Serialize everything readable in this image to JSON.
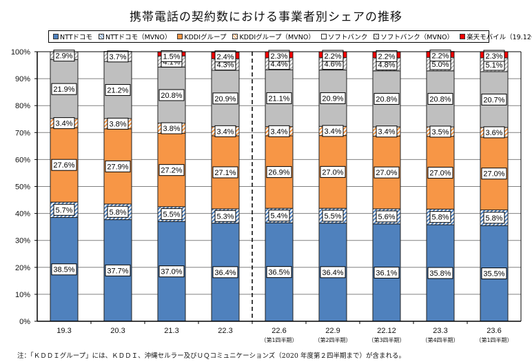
{
  "chart_data": {
    "type": "bar",
    "stacked": true,
    "title": "携帯電話の契約数における事業者別シェアの推移",
    "xlabel": "",
    "ylabel": "",
    "ylim": [
      0,
      100
    ],
    "yticks": [
      "0%",
      "10%",
      "20%",
      "30%",
      "40%",
      "50%",
      "60%",
      "70%",
      "80%",
      "90%",
      "100%"
    ],
    "grid": true,
    "legend_position": "top",
    "categories": [
      "19.3",
      "20.3",
      "21.3",
      "22.3",
      "22.6",
      "22.9",
      "22.12",
      "23.3",
      "23.6"
    ],
    "category_sublabels": [
      "",
      "",
      "",
      "",
      "（第1四半期）",
      "（第2四半期）",
      "（第3四半期）",
      "（第4四半期）",
      "（第1四半期）"
    ],
    "divider_after_category": "22.3",
    "series": [
      {
        "name": "NTTドコモ",
        "color": "#4f81bd",
        "pattern": "solid",
        "values": [
          38.5,
          37.7,
          37.0,
          36.4,
          36.5,
          36.4,
          36.1,
          35.8,
          35.5
        ]
      },
      {
        "name": "NTTドコモ（MVNO）",
        "color": "#4f81bd",
        "pattern": "hatch",
        "values": [
          5.7,
          5.8,
          5.5,
          5.3,
          5.4,
          5.5,
          5.6,
          5.8,
          5.8
        ]
      },
      {
        "name": "KDDIグループ",
        "color": "#f79646",
        "pattern": "solid",
        "values": [
          27.6,
          27.9,
          27.2,
          27.1,
          26.9,
          27.0,
          27.0,
          27.0,
          27.0
        ]
      },
      {
        "name": "KDDIグループ（MVNO）",
        "color": "#f79646",
        "pattern": "hatch",
        "values": [
          3.4,
          3.8,
          3.8,
          3.4,
          3.4,
          3.4,
          3.4,
          3.5,
          3.6
        ]
      },
      {
        "name": "ソフトバンク",
        "color": "#bfbfbf",
        "pattern": "solid",
        "values": [
          21.9,
          21.2,
          20.8,
          20.9,
          21.1,
          20.9,
          20.8,
          20.8,
          20.7
        ]
      },
      {
        "name": "ソフトバンク（MVNO）",
        "color": "#a6a6a6",
        "pattern": "hatch",
        "values": [
          2.9,
          3.7,
          4.1,
          4.3,
          4.4,
          4.6,
          4.8,
          5.0,
          5.1
        ]
      },
      {
        "name": "楽天モバイル（19.12～）",
        "color": "#ff0000",
        "pattern": "solid",
        "values": [
          null,
          null,
          1.5,
          2.4,
          2.3,
          2.2,
          2.2,
          2.2,
          2.3
        ]
      }
    ],
    "note": "注：「ＫＤＤＩグループ」には、ＫＤＤＩ、沖縄セルラー及びＵＱコミュニケーションズ（2020 年度第２四半期まで）が含まれる。"
  }
}
